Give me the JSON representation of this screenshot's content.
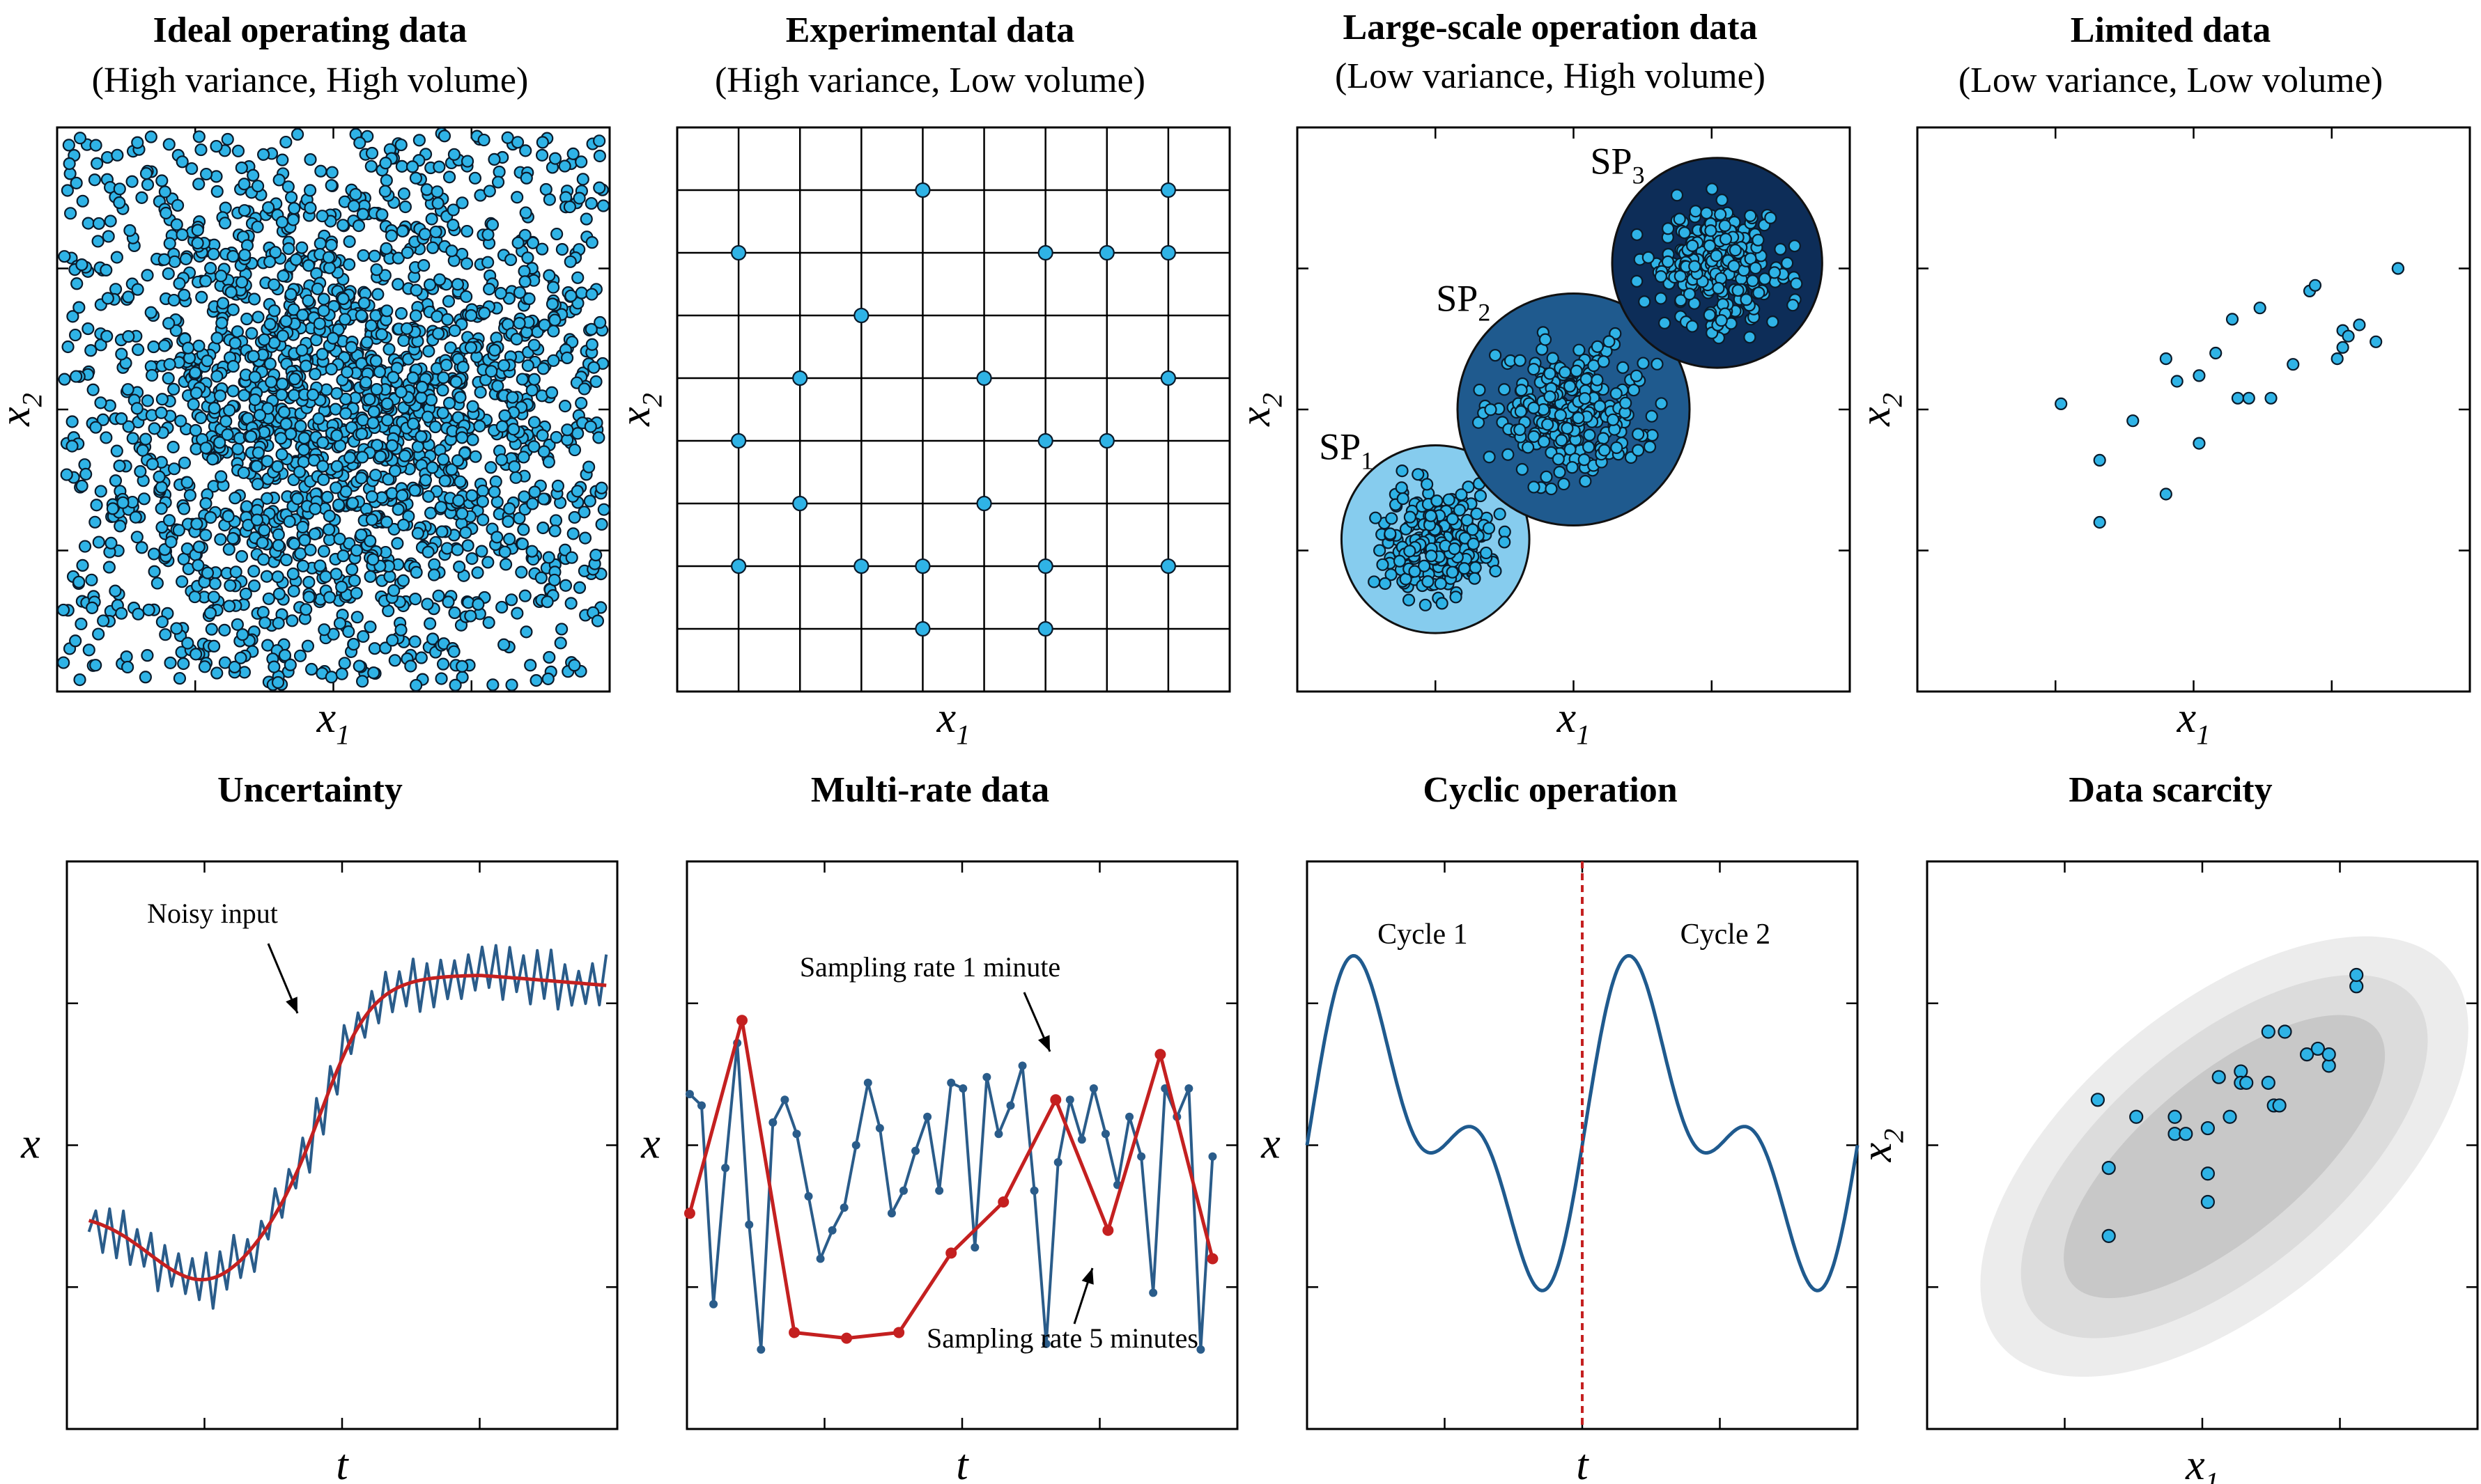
{
  "chart_data": [
    {
      "type": "scatter",
      "title": "Ideal operating data",
      "subtitle": "(High variance, High volume)",
      "xlabel": "x1",
      "ylabel": "x2",
      "description_values": {
        "distribution": "dense uniform + central cluster",
        "approx_points": 2200
      },
      "xlim": [
        0,
        1
      ],
      "ylim": [
        0,
        1
      ],
      "grid": false
    },
    {
      "type": "scatter",
      "title": "Experimental data",
      "subtitle": "(High variance, Low volume)",
      "xlabel": "x1",
      "ylabel": "x2",
      "grid": true,
      "grid_cols": 9,
      "grid_rows": 8,
      "points": [
        [
          4,
          1
        ],
        [
          8,
          1
        ],
        [
          1,
          2
        ],
        [
          6,
          2
        ],
        [
          7,
          2
        ],
        [
          8,
          2
        ],
        [
          3,
          3
        ],
        [
          2,
          4
        ],
        [
          5,
          4
        ],
        [
          8,
          4
        ],
        [
          1,
          5
        ],
        [
          6,
          5
        ],
        [
          7,
          5
        ],
        [
          2,
          6
        ],
        [
          5,
          6
        ],
        [
          1,
          7
        ],
        [
          3,
          7
        ],
        [
          4,
          7
        ],
        [
          6,
          7
        ],
        [
          8,
          7
        ],
        [
          4,
          8
        ],
        [
          6,
          8
        ]
      ]
    },
    {
      "type": "scatter",
      "title": "Large-scale operation data",
      "subtitle": "(Low variance, High volume)",
      "xlabel": "x1",
      "ylabel": "x2",
      "xlim": [
        0,
        1
      ],
      "ylim": [
        0,
        1
      ],
      "clusters": [
        {
          "label": "SP",
          "sub": "1",
          "center": [
            0.25,
            0.27
          ],
          "radius": 0.17,
          "color": "#86ccee"
        },
        {
          "label": "SP",
          "sub": "2",
          "center": [
            0.5,
            0.5
          ],
          "radius": 0.21,
          "color": "#1f5a8e"
        },
        {
          "label": "SP",
          "sub": "3",
          "center": [
            0.76,
            0.76
          ],
          "radius": 0.19,
          "color": "#0d2d58"
        }
      ]
    },
    {
      "type": "scatter",
      "title": "Limited data",
      "subtitle": "(Low variance, Low volume)",
      "xlabel": "x1",
      "ylabel": "x2",
      "xlim": [
        0,
        1
      ],
      "ylim": [
        0,
        1
      ],
      "points": [
        [
          0.26,
          0.51
        ],
        [
          0.33,
          0.41
        ],
        [
          0.33,
          0.3
        ],
        [
          0.39,
          0.48
        ],
        [
          0.45,
          0.35
        ],
        [
          0.45,
          0.59
        ],
        [
          0.47,
          0.55
        ],
        [
          0.51,
          0.44
        ],
        [
          0.51,
          0.56
        ],
        [
          0.54,
          0.6
        ],
        [
          0.57,
          0.66
        ],
        [
          0.58,
          0.52
        ],
        [
          0.6,
          0.52
        ],
        [
          0.62,
          0.68
        ],
        [
          0.64,
          0.52
        ],
        [
          0.68,
          0.58
        ],
        [
          0.71,
          0.71
        ],
        [
          0.72,
          0.72
        ],
        [
          0.76,
          0.59
        ],
        [
          0.77,
          0.61
        ],
        [
          0.77,
          0.64
        ],
        [
          0.78,
          0.63
        ],
        [
          0.8,
          0.65
        ],
        [
          0.83,
          0.62
        ],
        [
          0.87,
          0.75
        ],
        [
          0.87,
          0.75
        ]
      ]
    },
    {
      "type": "line",
      "title": "Uncertainty",
      "xlabel": "t",
      "ylabel": "x",
      "annotation": "Noisy input",
      "series": [
        {
          "color": "#2a5c8a"
        },
        {
          "color": "#c42020"
        }
      ]
    },
    {
      "type": "line",
      "title": "Multi-rate data",
      "xlabel": "t",
      "ylabel": "x",
      "annotations": [
        "Sampling rate 1 minute",
        "Sampling rate 5 minutes"
      ],
      "series": [
        {
          "color": "#2a5c8a",
          "values": [
            0.59,
            0.57,
            0.22,
            0.46,
            0.68,
            0.36,
            0.14,
            0.54,
            0.58,
            0.52,
            0.41,
            0.3,
            0.35,
            0.39,
            0.5,
            0.61,
            0.53,
            0.38,
            0.42,
            0.49,
            0.55,
            0.42,
            0.61,
            0.6,
            0.32,
            0.62,
            0.52,
            0.57,
            0.64,
            0.42,
            0.15,
            0.47,
            0.58,
            0.51,
            0.6,
            0.52,
            0.43,
            0.55,
            0.48,
            0.24,
            0.6,
            0.55,
            0.6,
            0.14,
            0.48,
            0.54,
            0.57,
            0.52,
            0.48,
            0.45,
            0.47,
            0.37,
            0.56,
            0.62,
            0.6,
            0.65,
            0.58,
            0.57,
            0.5,
            0.53,
            0.47,
            0.4,
            0.53,
            0.62,
            0.55,
            0.57,
            0.52,
            0.53,
            0.48,
            0.5,
            0.45,
            0.52,
            0.59,
            0.52,
            0.55,
            0.44,
            0.6,
            0.53,
            0.47,
            0.56,
            0.5,
            0.58,
            0.59,
            0.52,
            0.57,
            0.51,
            0.5,
            0.44,
            0.4,
            0.35,
            0.45,
            0.56,
            0.53,
            0.58,
            0.6,
            0.55,
            0.51,
            0.48,
            0.48,
            0.52
          ]
        },
        {
          "color": "#c42020",
          "values": [
            0.38,
            0.72,
            0.17,
            0.16,
            0.17,
            0.31,
            0.4,
            0.58,
            0.35,
            0.66,
            0.3
          ]
        }
      ]
    },
    {
      "type": "line",
      "title": "Cyclic operation",
      "xlabel": "t",
      "ylabel": "x",
      "annotations": [
        "Cycle 1",
        "Cycle 2"
      ],
      "series": [
        {
          "color": "#1f5a8e"
        }
      ],
      "divider": {
        "style": "dashed",
        "color": "#c42020"
      }
    },
    {
      "type": "scatter",
      "title": "Data scarcity",
      "xlabel": "x1",
      "ylabel": "x2",
      "xlim": [
        0,
        1
      ],
      "ylim": [
        0,
        1
      ],
      "points": [
        [
          0.31,
          0.58
        ],
        [
          0.33,
          0.46
        ],
        [
          0.33,
          0.34
        ],
        [
          0.38,
          0.55
        ],
        [
          0.45,
          0.52
        ],
        [
          0.45,
          0.55
        ],
        [
          0.47,
          0.52
        ],
        [
          0.51,
          0.45
        ],
        [
          0.51,
          0.53
        ],
        [
          0.51,
          0.4
        ],
        [
          0.53,
          0.62
        ],
        [
          0.55,
          0.55
        ],
        [
          0.57,
          0.63
        ],
        [
          0.57,
          0.61
        ],
        [
          0.58,
          0.61
        ],
        [
          0.62,
          0.7
        ],
        [
          0.62,
          0.61
        ],
        [
          0.63,
          0.57
        ],
        [
          0.64,
          0.57
        ],
        [
          0.65,
          0.7
        ],
        [
          0.69,
          0.66
        ],
        [
          0.71,
          0.67
        ],
        [
          0.73,
          0.64
        ],
        [
          0.73,
          0.66
        ],
        [
          0.78,
          0.78
        ],
        [
          0.78,
          0.8
        ]
      ]
    }
  ]
}
